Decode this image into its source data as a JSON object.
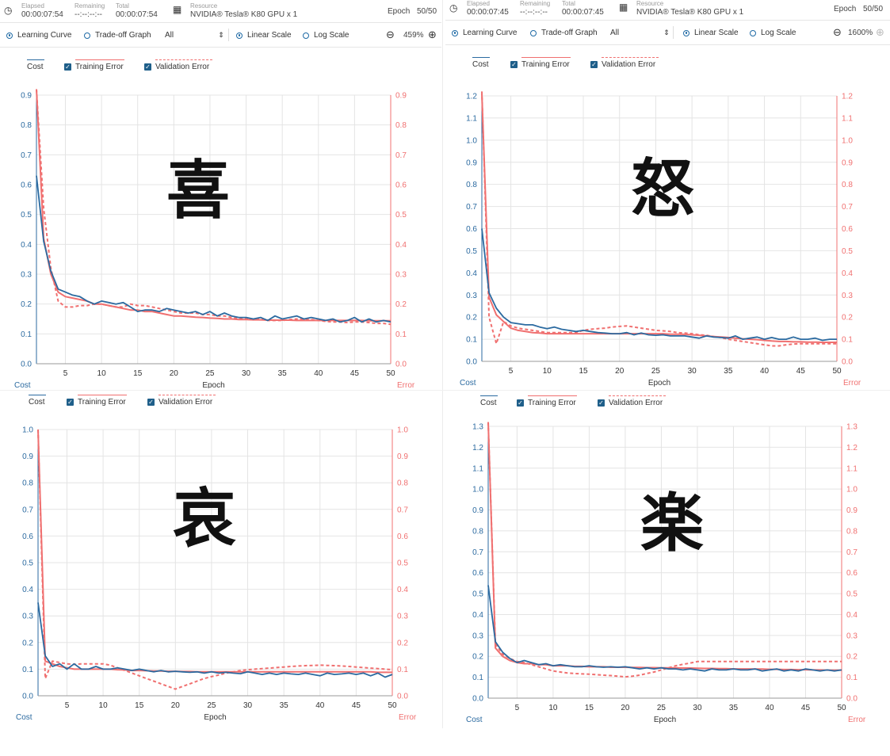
{
  "panels": [
    {
      "header": {
        "elapsed_label": "Elapsed",
        "elapsed": "00:00:07:54",
        "remaining_label": "Remaining",
        "remaining": "--:--:--:--",
        "total_label": "Total",
        "total": "00:00:07:54",
        "resource_label": "Resource",
        "resource": "NVIDIA® Tesla® K80 GPU x 1",
        "epoch_label": "Epoch",
        "epoch": "50/50"
      },
      "toolbar": {
        "learning_curve": "Learning Curve",
        "tradeoff": "Trade-off Graph",
        "filter": "All",
        "linear": "Linear Scale",
        "log": "Log Scale",
        "zoom": "459%"
      },
      "legend": {
        "cost": "Cost",
        "train": "Training Error",
        "valid": "Validation Error"
      },
      "kanji": "喜"
    },
    {
      "header": {
        "elapsed_label": "Elapsed",
        "elapsed": "00:00:07:45",
        "remaining_label": "Remaining",
        "remaining": "--:--:--:--",
        "total_label": "Total",
        "total": "00:00:07:45",
        "resource_label": "Resource",
        "resource": "NVIDIA® Tesla® K80 GPU x 1",
        "epoch_label": "Epoch",
        "epoch": "50/50"
      },
      "toolbar": {
        "learning_curve": "Learning Curve",
        "tradeoff": "Trade-off Graph",
        "filter": "All",
        "linear": "Linear Scale",
        "log": "Log Scale",
        "zoom": "1600%"
      },
      "legend": {
        "cost": "Cost",
        "train": "Training Error",
        "valid": "Validation Error"
      },
      "kanji": "怒"
    },
    {
      "legend": {
        "cost": "Cost",
        "train": "Training Error",
        "valid": "Validation Error"
      },
      "kanji": "哀"
    },
    {
      "legend": {
        "cost": "Cost",
        "train": "Training Error",
        "valid": "Validation Error"
      },
      "kanji": "楽"
    }
  ],
  "colors": {
    "cost": "#2b6aa0",
    "error": "#f07070",
    "grid": "#e4e4e4",
    "axis_left": "#2b6aa0",
    "axis_right": "#f07070"
  },
  "chart_data": [
    {
      "type": "line",
      "xlabel": "Epoch",
      "ylabel_left": "Cost",
      "ylabel_right": "Error",
      "ylim": [
        0,
        0.9
      ],
      "yticks": [
        0,
        0.1,
        0.2,
        0.3,
        0.4,
        0.5,
        0.6,
        0.7,
        0.8,
        0.9
      ],
      "xlim": [
        1,
        50
      ],
      "xticks": [
        5,
        10,
        15,
        20,
        25,
        30,
        35,
        40,
        45,
        50
      ],
      "x": [
        1,
        2,
        3,
        4,
        5,
        6,
        7,
        8,
        9,
        10,
        11,
        12,
        13,
        14,
        15,
        16,
        17,
        18,
        19,
        20,
        21,
        22,
        23,
        24,
        25,
        26,
        27,
        28,
        29,
        30,
        31,
        32,
        33,
        34,
        35,
        36,
        37,
        38,
        39,
        40,
        41,
        42,
        43,
        44,
        45,
        46,
        47,
        48,
        49,
        50
      ],
      "series": [
        {
          "name": "Cost",
          "style": "solid",
          "values": [
            0.63,
            0.41,
            0.31,
            0.25,
            0.24,
            0.23,
            0.225,
            0.21,
            0.2,
            0.21,
            0.205,
            0.2,
            0.205,
            0.19,
            0.175,
            0.18,
            0.18,
            0.175,
            0.185,
            0.18,
            0.175,
            0.17,
            0.175,
            0.165,
            0.175,
            0.16,
            0.17,
            0.16,
            0.155,
            0.155,
            0.15,
            0.155,
            0.145,
            0.16,
            0.15,
            0.155,
            0.16,
            0.15,
            0.155,
            0.15,
            0.145,
            0.15,
            0.14,
            0.145,
            0.155,
            0.14,
            0.15,
            0.14,
            0.145,
            0.14
          ]
        },
        {
          "name": "Training Error",
          "style": "solid",
          "values": [
            0.92,
            0.42,
            0.3,
            0.24,
            0.225,
            0.22,
            0.215,
            0.21,
            0.2,
            0.2,
            0.195,
            0.19,
            0.185,
            0.18,
            0.18,
            0.175,
            0.175,
            0.17,
            0.165,
            0.16,
            0.16,
            0.158,
            0.156,
            0.155,
            0.153,
            0.152,
            0.15,
            0.15,
            0.148,
            0.148,
            0.147,
            0.147,
            0.146,
            0.146,
            0.146,
            0.146,
            0.145,
            0.145,
            0.145,
            0.145,
            0.145,
            0.145,
            0.145,
            0.145,
            0.145,
            0.145,
            0.144,
            0.144,
            0.144,
            0.144
          ]
        },
        {
          "name": "Validation Error",
          "style": "dashed",
          "values": [
            0.93,
            0.52,
            0.32,
            0.21,
            0.19,
            0.19,
            0.195,
            0.195,
            0.2,
            0.2,
            0.195,
            0.19,
            0.19,
            0.2,
            0.195,
            0.195,
            0.19,
            0.185,
            0.18,
            0.175,
            0.17,
            0.17,
            0.17,
            0.165,
            0.165,
            0.16,
            0.16,
            0.155,
            0.15,
            0.15,
            0.148,
            0.15,
            0.145,
            0.145,
            0.145,
            0.148,
            0.15,
            0.15,
            0.148,
            0.145,
            0.142,
            0.14,
            0.14,
            0.138,
            0.14,
            0.14,
            0.138,
            0.135,
            0.135,
            0.132
          ]
        }
      ]
    },
    {
      "type": "line",
      "xlabel": "Epoch",
      "ylabel_left": "Cost",
      "ylabel_right": "Error",
      "ylim": [
        0,
        1.2
      ],
      "yticks": [
        0,
        0.1,
        0.2,
        0.3,
        0.4,
        0.5,
        0.6,
        0.7,
        0.8,
        0.9,
        1.0,
        1.1,
        1.2
      ],
      "xlim": [
        1,
        50
      ],
      "xticks": [
        5,
        10,
        15,
        20,
        25,
        30,
        35,
        40,
        45,
        50
      ],
      "x": [
        1,
        2,
        3,
        4,
        5,
        6,
        7,
        8,
        9,
        10,
        11,
        12,
        13,
        14,
        15,
        16,
        17,
        18,
        19,
        20,
        21,
        22,
        23,
        24,
        25,
        26,
        27,
        28,
        29,
        30,
        31,
        32,
        33,
        34,
        35,
        36,
        37,
        38,
        39,
        40,
        41,
        42,
        43,
        44,
        45,
        46,
        47,
        48,
        49,
        50
      ],
      "series": [
        {
          "name": "Cost",
          "style": "solid",
          "values": [
            0.6,
            0.31,
            0.24,
            0.2,
            0.175,
            0.17,
            0.165,
            0.165,
            0.155,
            0.148,
            0.155,
            0.145,
            0.14,
            0.135,
            0.14,
            0.135,
            0.13,
            0.128,
            0.125,
            0.125,
            0.13,
            0.12,
            0.128,
            0.12,
            0.118,
            0.12,
            0.115,
            0.115,
            0.115,
            0.11,
            0.105,
            0.115,
            0.11,
            0.108,
            0.105,
            0.115,
            0.1,
            0.105,
            0.11,
            0.1,
            0.108,
            0.1,
            0.1,
            0.11,
            0.1,
            0.1,
            0.105,
            0.095,
            0.1,
            0.1
          ]
        },
        {
          "name": "Training Error",
          "style": "solid",
          "values": [
            1.21,
            0.29,
            0.21,
            0.18,
            0.15,
            0.14,
            0.135,
            0.13,
            0.128,
            0.125,
            0.125,
            0.125,
            0.125,
            0.125,
            0.125,
            0.125,
            0.125,
            0.125,
            0.125,
            0.125,
            0.125,
            0.125,
            0.125,
            0.125,
            0.125,
            0.125,
            0.123,
            0.123,
            0.122,
            0.12,
            0.118,
            0.115,
            0.112,
            0.11,
            0.108,
            0.105,
            0.102,
            0.1,
            0.098,
            0.095,
            0.092,
            0.09,
            0.09,
            0.088,
            0.088,
            0.087,
            0.087,
            0.086,
            0.086,
            0.086
          ]
        },
        {
          "name": "Validation Error",
          "style": "dashed",
          "values": [
            1.22,
            0.2,
            0.08,
            0.18,
            0.16,
            0.15,
            0.145,
            0.14,
            0.135,
            0.13,
            0.13,
            0.13,
            0.13,
            0.13,
            0.14,
            0.145,
            0.148,
            0.15,
            0.155,
            0.158,
            0.16,
            0.155,
            0.15,
            0.145,
            0.14,
            0.138,
            0.135,
            0.13,
            0.128,
            0.125,
            0.12,
            0.118,
            0.112,
            0.108,
            0.1,
            0.095,
            0.09,
            0.085,
            0.08,
            0.075,
            0.07,
            0.07,
            0.075,
            0.078,
            0.08,
            0.08,
            0.08,
            0.08,
            0.08,
            0.08
          ]
        }
      ]
    },
    {
      "type": "line",
      "xlabel": "Epoch",
      "ylabel_left": "Cost",
      "ylabel_right": "Error",
      "ylim": [
        0,
        1.0
      ],
      "yticks": [
        0,
        0.1,
        0.2,
        0.3,
        0.4,
        0.5,
        0.6,
        0.7,
        0.8,
        0.9,
        1.0
      ],
      "xlim": [
        1,
        50
      ],
      "xticks": [
        5,
        10,
        15,
        20,
        25,
        30,
        35,
        40,
        45,
        50
      ],
      "x": [
        1,
        2,
        3,
        4,
        5,
        6,
        7,
        8,
        9,
        10,
        11,
        12,
        13,
        14,
        15,
        16,
        17,
        18,
        19,
        20,
        21,
        22,
        23,
        24,
        25,
        26,
        27,
        28,
        29,
        30,
        31,
        32,
        33,
        34,
        35,
        36,
        37,
        38,
        39,
        40,
        41,
        42,
        43,
        44,
        45,
        46,
        47,
        48,
        49,
        50
      ],
      "series": [
        {
          "name": "Cost",
          "style": "solid",
          "values": [
            0.35,
            0.15,
            0.11,
            0.12,
            0.1,
            0.12,
            0.1,
            0.1,
            0.11,
            0.1,
            0.1,
            0.105,
            0.1,
            0.095,
            0.1,
            0.095,
            0.09,
            0.095,
            0.09,
            0.092,
            0.09,
            0.088,
            0.09,
            0.085,
            0.09,
            0.085,
            0.088,
            0.085,
            0.083,
            0.09,
            0.085,
            0.08,
            0.085,
            0.08,
            0.085,
            0.082,
            0.08,
            0.085,
            0.08,
            0.075,
            0.085,
            0.08,
            0.082,
            0.085,
            0.08,
            0.085,
            0.075,
            0.085,
            0.07,
            0.08
          ]
        },
        {
          "name": "Training Error",
          "style": "solid",
          "values": [
            1.0,
            0.13,
            0.12,
            0.11,
            0.105,
            0.1,
            0.1,
            0.1,
            0.1,
            0.1,
            0.1,
            0.098,
            0.097,
            0.095,
            0.095,
            0.094,
            0.093,
            0.093,
            0.092,
            0.092,
            0.091,
            0.091,
            0.09,
            0.09,
            0.09,
            0.09,
            0.09,
            0.09,
            0.09,
            0.09,
            0.09,
            0.09,
            0.09,
            0.09,
            0.09,
            0.09,
            0.09,
            0.09,
            0.09,
            0.09,
            0.09,
            0.09,
            0.09,
            0.09,
            0.09,
            0.09,
            0.09,
            0.088,
            0.088,
            0.088
          ]
        },
        {
          "name": "Validation Error",
          "style": "dashed",
          "values": [
            1.0,
            0.065,
            0.13,
            0.125,
            0.12,
            0.118,
            0.12,
            0.12,
            0.12,
            0.12,
            0.115,
            0.105,
            0.095,
            0.085,
            0.075,
            0.065,
            0.055,
            0.045,
            0.035,
            0.025,
            0.035,
            0.045,
            0.055,
            0.065,
            0.072,
            0.078,
            0.085,
            0.09,
            0.095,
            0.098,
            0.1,
            0.102,
            0.104,
            0.106,
            0.108,
            0.11,
            0.112,
            0.113,
            0.114,
            0.115,
            0.114,
            0.113,
            0.112,
            0.11,
            0.108,
            0.106,
            0.104,
            0.102,
            0.1,
            0.098
          ]
        }
      ]
    },
    {
      "type": "line",
      "xlabel": "Epoch",
      "ylabel_left": "Cost",
      "ylabel_right": "Error",
      "ylim": [
        0,
        1.3
      ],
      "yticks": [
        0,
        0.1,
        0.2,
        0.3,
        0.4,
        0.5,
        0.6,
        0.7,
        0.8,
        0.9,
        1.0,
        1.1,
        1.2,
        1.3
      ],
      "xlim": [
        1,
        50
      ],
      "xticks": [
        5,
        10,
        15,
        20,
        25,
        30,
        35,
        40,
        45,
        50
      ],
      "x": [
        1,
        2,
        3,
        4,
        5,
        6,
        7,
        8,
        9,
        10,
        11,
        12,
        13,
        14,
        15,
        16,
        17,
        18,
        19,
        20,
        21,
        22,
        23,
        24,
        25,
        26,
        27,
        28,
        29,
        30,
        31,
        32,
        33,
        34,
        35,
        36,
        37,
        38,
        39,
        40,
        41,
        42,
        43,
        44,
        45,
        46,
        47,
        48,
        49,
        50
      ],
      "series": [
        {
          "name": "Cost",
          "style": "solid",
          "values": [
            0.54,
            0.27,
            0.22,
            0.19,
            0.17,
            0.18,
            0.17,
            0.16,
            0.165,
            0.155,
            0.16,
            0.155,
            0.15,
            0.15,
            0.155,
            0.15,
            0.148,
            0.15,
            0.148,
            0.15,
            0.145,
            0.14,
            0.145,
            0.14,
            0.145,
            0.14,
            0.14,
            0.135,
            0.14,
            0.135,
            0.13,
            0.14,
            0.135,
            0.135,
            0.14,
            0.135,
            0.135,
            0.14,
            0.13,
            0.135,
            0.14,
            0.13,
            0.135,
            0.13,
            0.14,
            0.135,
            0.13,
            0.135,
            0.13,
            0.135
          ]
        },
        {
          "name": "Training Error",
          "style": "solid",
          "values": [
            1.33,
            0.24,
            0.2,
            0.18,
            0.17,
            0.165,
            0.165,
            0.16,
            0.16,
            0.155,
            0.155,
            0.155,
            0.152,
            0.152,
            0.15,
            0.15,
            0.15,
            0.148,
            0.148,
            0.148,
            0.147,
            0.147,
            0.146,
            0.146,
            0.145,
            0.145,
            0.145,
            0.144,
            0.144,
            0.143,
            0.142,
            0.142,
            0.141,
            0.141,
            0.14,
            0.14,
            0.14,
            0.139,
            0.139,
            0.138,
            0.138,
            0.137,
            0.137,
            0.136,
            0.136,
            0.135,
            0.135,
            0.134,
            0.134,
            0.134
          ]
        },
        {
          "name": "Validation Error",
          "style": "dashed",
          "values": [
            1.34,
            0.26,
            0.21,
            0.19,
            0.175,
            0.17,
            0.16,
            0.15,
            0.14,
            0.13,
            0.125,
            0.12,
            0.118,
            0.116,
            0.115,
            0.112,
            0.11,
            0.108,
            0.105,
            0.102,
            0.105,
            0.11,
            0.118,
            0.125,
            0.135,
            0.145,
            0.155,
            0.162,
            0.168,
            0.175,
            0.175,
            0.175,
            0.175,
            0.175,
            0.175,
            0.175,
            0.175,
            0.175,
            0.175,
            0.175,
            0.175,
            0.175,
            0.175,
            0.175,
            0.175,
            0.175,
            0.175,
            0.175,
            0.175,
            0.175
          ]
        }
      ]
    }
  ]
}
